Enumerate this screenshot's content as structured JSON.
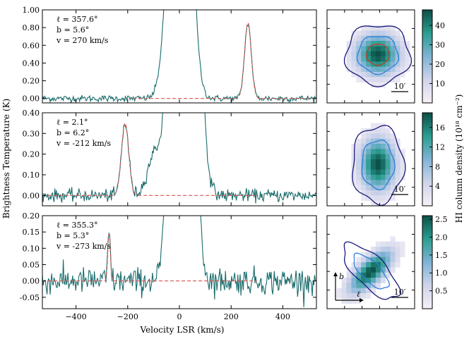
{
  "figure": {
    "xlabel": "Velocity LSR (km/s)",
    "ylabel": "Brightness Temperature (K)",
    "colorbar_label": "HI column density (10¹⁸ cm⁻²)",
    "scale_bar_label": "10′",
    "axis_b_label": "b",
    "axis_l_label": "ℓ"
  },
  "colors": {
    "spectrum": "#1a6b6b",
    "fit": "#d9534f",
    "contour_outer": "#1a1a7a",
    "contour_mid": "#2f7fd6",
    "contour_inner": "#c0392b"
  },
  "chart_data": [
    {
      "type": "line",
      "panel": 1,
      "annotations": {
        "l": "ℓ = 357.6°",
        "b": "b = 5.6°",
        "v": "v = 270 km/s"
      },
      "xlim": [
        -530,
        530
      ],
      "ylim": [
        -0.05,
        1.0
      ],
      "x_ticks": [
        -400,
        -200,
        0,
        200,
        400
      ],
      "y_ticks": [
        0.0,
        0.2,
        0.4,
        0.6,
        0.8,
        1.0
      ],
      "y_tick_labels": [
        "0.00",
        "0.20",
        "0.40",
        "0.60",
        "0.80",
        "1.00"
      ],
      "show_x_tick_labels": false,
      "gaussian": {
        "center": 265,
        "amp": 0.85,
        "sigma": 13
      },
      "noise": 0.018,
      "mw": {
        "center": 5,
        "amp": 6,
        "sigma": 32,
        "shoulder_center": -50,
        "shoulder_amp": 0.3,
        "shoulder_sigma": 25
      },
      "fit_range": [
        -180,
        520
      ]
    },
    {
      "type": "line",
      "panel": 2,
      "annotations": {
        "l": "ℓ = 2.1°",
        "b": "b = 6.2°",
        "v": "v = -212 km/s"
      },
      "xlim": [
        -530,
        530
      ],
      "ylim": [
        -0.05,
        0.4
      ],
      "x_ticks": [
        -400,
        -200,
        0,
        200,
        400
      ],
      "y_ticks": [
        0.0,
        0.1,
        0.2,
        0.3,
        0.4
      ],
      "y_tick_labels": [
        "0.00",
        "0.10",
        "0.20",
        "0.30",
        "0.40"
      ],
      "show_x_tick_labels": false,
      "gaussian": {
        "center": -210,
        "amp": 0.35,
        "sigma": 14
      },
      "noise": 0.015,
      "mw": {
        "center": 20,
        "amp": 5,
        "sigma": 35,
        "shoulder_center": -95,
        "shoulder_amp": 0.2,
        "shoulder_sigma": 28
      },
      "fit_range": [
        -530,
        300
      ]
    },
    {
      "type": "line",
      "panel": 3,
      "annotations": {
        "l": "ℓ = 355.3°",
        "b": "b = 5.3°",
        "v": "v = -273 km/s"
      },
      "xlim": [
        -530,
        530
      ],
      "ylim": [
        -0.085,
        0.2
      ],
      "x_ticks": [
        -400,
        -200,
        0,
        200,
        400
      ],
      "y_ticks": [
        -0.05,
        0.0,
        0.05,
        0.1,
        0.15,
        0.2
      ],
      "y_tick_labels": [
        "-0.05",
        "0.00",
        "0.05",
        "0.10",
        "0.15",
        "0.20"
      ],
      "show_x_tick_labels": true,
      "x_tick_labels": [
        "−400",
        "−200",
        "0",
        "200",
        "400"
      ],
      "gaussian": {
        "center": -272,
        "amp": 0.145,
        "sigma": 5
      },
      "noise": 0.02,
      "mw": {
        "center": 10,
        "amp": 3,
        "sigma": 30,
        "shoulder_center": 60,
        "shoulder_amp": 0.1,
        "shoulder_sigma": 15
      },
      "fit_range": [
        -530,
        300
      ]
    }
  ],
  "maps": [
    {
      "panel": 1,
      "colorbar_ticks": [
        10,
        20,
        30,
        40
      ],
      "vmin": 0,
      "vmax": 48,
      "has_inner": true,
      "blob": "round"
    },
    {
      "panel": 2,
      "colorbar_ticks": [
        4,
        8,
        12,
        16
      ],
      "vmin": 0,
      "vmax": 19,
      "has_inner": false,
      "blob": "tall"
    },
    {
      "panel": 3,
      "colorbar_ticks": [
        "0.5",
        "1.0",
        "1.5",
        "2.0",
        "2.5"
      ],
      "vmin": 0,
      "vmax": 2.6,
      "has_inner": false,
      "blob": "diag"
    }
  ]
}
